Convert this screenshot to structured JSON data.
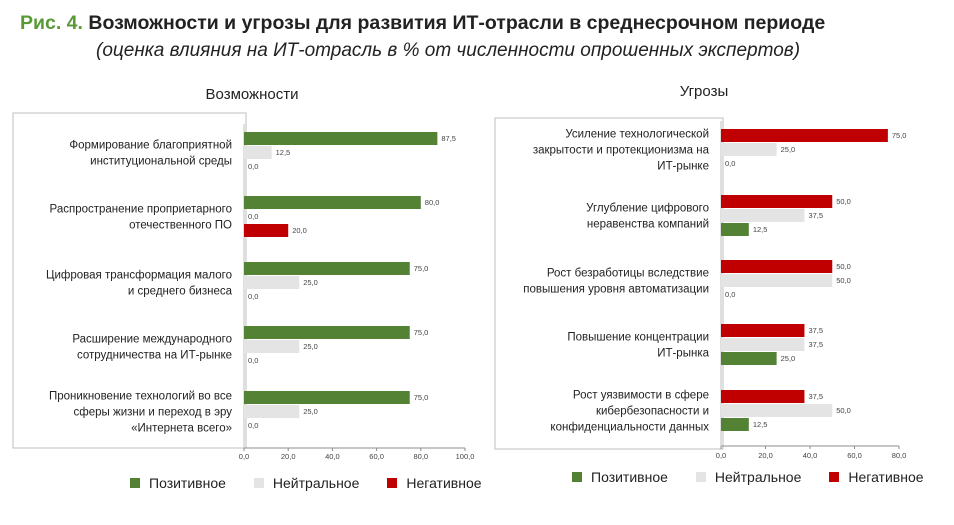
{
  "header": {
    "prefix": "Рис. 4.",
    "title": "Возможности и угрозы для развития ИТ-отрасли в среднесрочном периоде",
    "subtitle": "(оценка влияния на ИТ-отрасль в % от численности опрошенных экспертов)"
  },
  "colors": {
    "positive": "#548235",
    "neutral": "#e4e4e4",
    "negative": "#c00000",
    "prefix_accent": "#5a9a36"
  },
  "legend": [
    {
      "label": "Позитивное"
    },
    {
      "label": "Нейтральное"
    },
    {
      "label": "Негативное"
    }
  ],
  "chart_data": [
    {
      "type": "bar",
      "orientation": "horizontal",
      "title": "Возможности",
      "categories": [
        [
          "Формирование благоприятной",
          "институциональной среды"
        ],
        [
          "Распространение проприетарного",
          "отечественного ПО"
        ],
        [
          "Цифровая трансформация малого",
          "и среднего бизнеса"
        ],
        [
          "Расширение международного",
          "сотрудничества на ИТ-рынке"
        ],
        [
          "Проникновение технологий во все",
          "сферы жизни и переход в эру",
          "«Интернета всего»"
        ]
      ],
      "series": [
        {
          "name": "Позитивное",
          "values": [
            87.5,
            80.0,
            75.0,
            75.0,
            75.0
          ]
        },
        {
          "name": "Нейтральное",
          "values": [
            12.5,
            0.0,
            25.0,
            25.0,
            25.0
          ]
        },
        {
          "name": "Негативное",
          "values": [
            0.0,
            20.0,
            0.0,
            0.0,
            0.0
          ]
        }
      ],
      "series_order": [
        [
          "Позитивное",
          "Нейтральное",
          "Негативное"
        ],
        [
          "Позитивное",
          "Нейтральное",
          "Негативное"
        ],
        [
          "Позитивное",
          "Нейтральное",
          "Негативное"
        ],
        [
          "Позитивное",
          "Нейтральное",
          "Негативное"
        ],
        [
          "Позитивное",
          "Нейтральное",
          "Негативное"
        ]
      ],
      "data_labels": [
        [
          "87,5",
          "12,5",
          "0,0"
        ],
        [
          "80,0",
          "0,0",
          "20,0"
        ],
        [
          "75,0",
          "25,0",
          "0,0"
        ],
        [
          "75,0",
          "25,0",
          "0,0"
        ],
        [
          "75,0",
          "25,0",
          "0,0"
        ]
      ],
      "xlim": [
        0,
        100
      ],
      "ticks": [
        "0,0",
        "20,0",
        "40,0",
        "60,0",
        "80,0",
        "100,0"
      ],
      "grid": false,
      "legend_position": "bottom"
    },
    {
      "type": "bar",
      "orientation": "horizontal",
      "title": "Угрозы",
      "categories": [
        [
          "Усиление технологической",
          "закрытости и протекционизма на",
          "ИТ-рынке"
        ],
        [
          "Углубление цифрового",
          "неравенства  компаний"
        ],
        [
          "Рост безработицы вследствие",
          "повышения уровня автоматизации"
        ],
        [
          "Повышение концентрации",
          "ИТ-рынка"
        ],
        [
          "Рост уязвимости в сфере",
          "кибербезопасности  и",
          "конфиденциальности данных"
        ]
      ],
      "series": [
        {
          "name": "Негативное",
          "values": [
            75.0,
            50.0,
            50.0,
            37.5,
            37.5
          ]
        },
        {
          "name": "Нейтральное",
          "values": [
            25.0,
            37.5,
            50.0,
            37.5,
            50.0
          ]
        },
        {
          "name": "Позитивное",
          "values": [
            0.0,
            12.5,
            0.0,
            25.0,
            12.5
          ]
        }
      ],
      "series_order": [
        [
          "Негативное",
          "Нейтральное",
          "Позитивное"
        ],
        [
          "Негативное",
          "Нейтральное",
          "Позитивное"
        ],
        [
          "Негативное",
          "Нейтральное",
          "Позитивное"
        ],
        [
          "Негативное",
          "Нейтральное",
          "Позитивное"
        ],
        [
          "Негативное",
          "Нейтральное",
          "Позитивное"
        ]
      ],
      "data_labels": [
        [
          "75,0",
          "25,0",
          "0,0"
        ],
        [
          "50,0",
          "37,5",
          "12,5"
        ],
        [
          "50,0",
          "50,0",
          "0,0"
        ],
        [
          "37,5",
          "37,5",
          "25,0"
        ],
        [
          "37,5",
          "50,0",
          "12,5"
        ]
      ],
      "xlim": [
        0,
        80
      ],
      "ticks": [
        "0,0",
        "20,0",
        "40,0",
        "60,0",
        "80,0"
      ],
      "grid": false,
      "legend_position": "bottom"
    }
  ]
}
